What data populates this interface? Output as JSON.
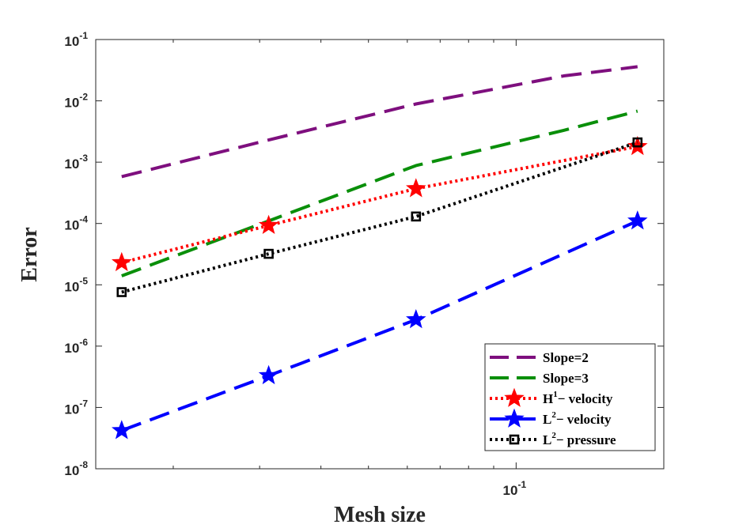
{
  "chart_data": {
    "type": "line",
    "title": "",
    "xlabel": "Mesh size",
    "ylabel": "Error",
    "xscale": "log",
    "yscale": "log",
    "xlim": [
      0.0139,
      0.2
    ],
    "ylim": [
      1e-08,
      0.1
    ],
    "x_ticks": [
      {
        "value": 0.1,
        "base": "10",
        "exp": "-1"
      }
    ],
    "y_ticks": [
      {
        "value": 1e-08,
        "base": "10",
        "exp": "-8"
      },
      {
        "value": 1e-07,
        "base": "10",
        "exp": "-7"
      },
      {
        "value": 1e-06,
        "base": "10",
        "exp": "-6"
      },
      {
        "value": 1e-05,
        "base": "10",
        "exp": "-5"
      },
      {
        "value": 0.0001,
        "base": "10",
        "exp": "-4"
      },
      {
        "value": 0.001,
        "base": "10",
        "exp": "-3"
      },
      {
        "value": 0.01,
        "base": "10",
        "exp": "-2"
      },
      {
        "value": 0.1,
        "base": "10",
        "exp": "-1"
      }
    ],
    "x_minor_ticks": [
      0.02,
      0.03,
      0.04,
      0.05,
      0.06,
      0.07,
      0.08,
      0.09,
      0.2
    ],
    "grid": false,
    "legend_position": "bottom-right",
    "series": [
      {
        "name": "Slope=2",
        "legend_label": {
          "main": "Slope=2",
          "sup": "",
          "rest": ""
        },
        "color": "#7e0f7e",
        "dash": "dashed",
        "marker": "none",
        "x": [
          0.0157,
          0.0313,
          0.0625,
          0.125,
          0.1768
        ],
        "y": [
          0.00058,
          0.0023,
          0.0089,
          0.0255,
          0.036
        ]
      },
      {
        "name": "Slope=3",
        "legend_label": {
          "main": "Slope=3",
          "sup": "",
          "rest": ""
        },
        "color": "#0a8f0a",
        "dash": "dashed",
        "marker": "none",
        "x": [
          0.0157,
          0.0313,
          0.0625,
          0.125,
          0.1768
        ],
        "y": [
          1.4e-05,
          0.00011,
          0.00088,
          0.0033,
          0.0068
        ]
      },
      {
        "name": "H1- velocity",
        "legend_label": {
          "main": "H",
          "sup": "1",
          "rest": "− velocity"
        },
        "color": "#ff0000",
        "dash": "dotted",
        "marker": "star",
        "x": [
          0.0157,
          0.0313,
          0.0625,
          0.1768
        ],
        "y": [
          2.3e-05,
          9.3e-05,
          0.00037,
          0.0018
        ]
      },
      {
        "name": "L2- velocity",
        "legend_label": {
          "main": "L",
          "sup": "2",
          "rest": "− velocity"
        },
        "color": "#0000ff",
        "dash": "dashed",
        "marker": "star",
        "x": [
          0.0157,
          0.0313,
          0.0625,
          0.1768
        ],
        "y": [
          4.2e-08,
          3.3e-07,
          2.7e-06,
          0.00011
        ]
      },
      {
        "name": "L2- pressure",
        "legend_label": {
          "main": "L",
          "sup": "2",
          "rest": "− pressure"
        },
        "color": "#000000",
        "dash": "dotted",
        "marker": "square",
        "x": [
          0.0157,
          0.0313,
          0.0625,
          0.1768
        ],
        "y": [
          7.6e-06,
          3.2e-05,
          0.00013,
          0.0021
        ]
      }
    ]
  }
}
